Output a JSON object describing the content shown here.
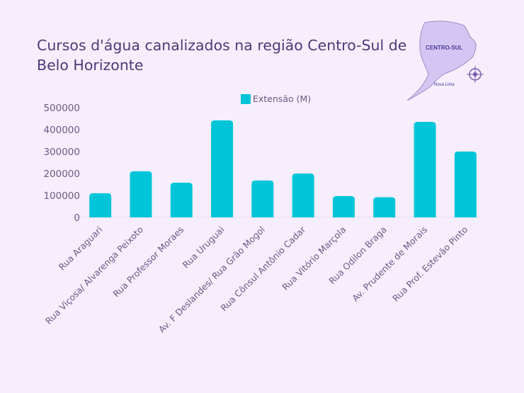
{
  "title": "Cursos d'água canalizados na região Centro-Sul de Belo Horizonte",
  "map_inset": {
    "region_label": "CENTRO-SUL",
    "place_label": "Nova Lima"
  },
  "colors": {
    "bar": "#00c5d8",
    "title": "#4a3a78",
    "background": "#f6eefc"
  },
  "chart_data": {
    "type": "bar",
    "title": "Cursos d'água canalizados na região Centro-Sul de Belo Horizonte",
    "xlabel": "",
    "ylabel": "",
    "ylim": [
      0,
      500000
    ],
    "yticks": [
      "0",
      "100000",
      "200000",
      "300000",
      "400000",
      "500000"
    ],
    "legend": "top",
    "grid": false,
    "categories": [
      "Rua Araguari",
      "Rua Viçosa/ Alvarenga Peixoto",
      "Rua Professor Moraes",
      "Rua Uruguai",
      "Av. F Deslandes/ Rua Grão Mogol",
      "Rua Cônsul Antônio Cadar",
      "Rua Vitório Marçola",
      "Rua Odilon Braga",
      "Av. Prudente de Morais",
      "Rua Prof. Estevão Pinto"
    ],
    "series": [
      {
        "name": "Extensão (M)",
        "values": [
          110000,
          210000,
          158000,
          442000,
          168000,
          200000,
          97000,
          92000,
          435000,
          300000
        ]
      }
    ]
  }
}
